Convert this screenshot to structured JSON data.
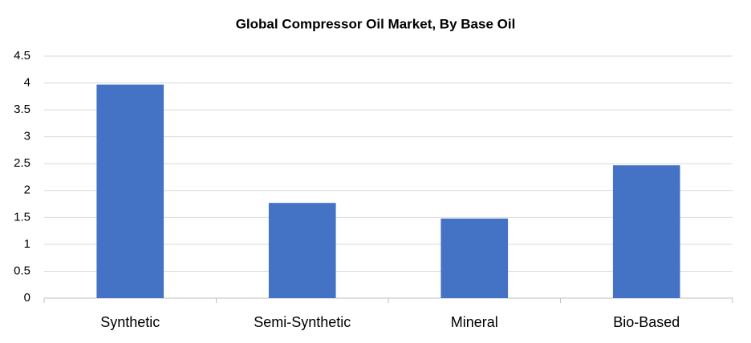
{
  "chart_data": {
    "type": "bar",
    "title": "Global Compressor Oil Market, By Base Oil",
    "categories": [
      "Synthetic",
      "Semi-Synthetic",
      "Mineral",
      "Bio-Based"
    ],
    "values": [
      3.97,
      1.77,
      1.48,
      2.47
    ],
    "color": "#4472c4",
    "ylim": [
      0,
      4.5
    ],
    "yticks": [
      0,
      0.5,
      1,
      1.5,
      2,
      2.5,
      3,
      3.5,
      4,
      4.5
    ],
    "grid": true
  }
}
